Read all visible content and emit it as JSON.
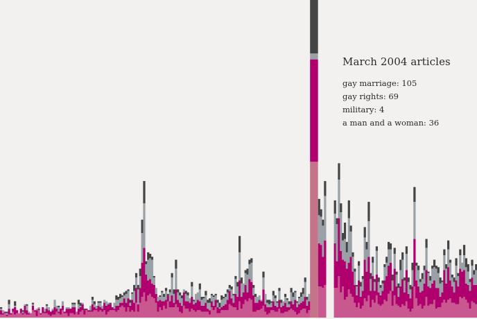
{
  "colors": {
    "background": "#f2f1ef",
    "gay_marriage": "#c8588f",
    "gay_rights": "#b0006e",
    "military": "#9aa1a6",
    "a_man_and_a_woman": "#444444",
    "highlight_base": "#c47389"
  },
  "tooltip": {
    "title": "March 2004 articles",
    "items": [
      {
        "label": "gay marriage",
        "value": 105,
        "text": "gay marriage: 105"
      },
      {
        "label": "gay rights",
        "value": 69,
        "text": "gay rights: 69"
      },
      {
        "label": "military",
        "value": 4,
        "text": "military: 4"
      },
      {
        "label": "a man and a woman",
        "value": 36,
        "text": "a man and a woman: 36"
      }
    ]
  },
  "chart_data": {
    "type": "bar",
    "stacked": true,
    "highlighted_category": "March 2004",
    "series": [
      {
        "name": "gay marriage",
        "key": "gay_marriage"
      },
      {
        "name": "gay rights",
        "key": "gay_rights"
      },
      {
        "name": "military",
        "key": "military"
      },
      {
        "name": "a man and a woman",
        "key": "a_man_and_a_woman"
      }
    ],
    "highlight_values": {
      "gay_marriage": 105,
      "gay_rights": 69,
      "military": 4,
      "a_man_and_a_woman": 36
    },
    "ylim": [
      0,
      214
    ],
    "bars": [
      [
        2,
        3,
        1,
        1
      ],
      [
        2,
        1,
        2,
        0
      ],
      [
        3,
        1,
        0,
        0
      ],
      [
        1,
        1,
        1,
        1
      ],
      [
        2,
        4,
        3,
        3
      ],
      [
        2,
        1,
        0,
        0
      ],
      [
        4,
        2,
        0,
        0
      ],
      [
        2,
        5,
        1,
        3
      ],
      [
        3,
        2,
        0,
        0
      ],
      [
        3,
        0,
        0,
        0
      ],
      [
        3,
        3,
        0,
        0
      ],
      [
        2,
        1,
        1,
        1
      ],
      [
        3,
        5,
        1,
        0
      ],
      [
        2,
        3,
        3,
        1
      ],
      [
        2,
        1,
        1,
        0
      ],
      [
        3,
        0,
        0,
        0
      ],
      [
        5,
        3,
        1,
        1
      ],
      [
        4,
        1,
        0,
        0
      ],
      [
        1,
        4,
        1,
        0
      ],
      [
        5,
        1,
        1,
        0
      ],
      [
        2,
        1,
        0,
        0
      ],
      [
        3,
        4,
        0,
        0
      ],
      [
        3,
        1,
        2,
        0
      ],
      [
        3,
        3,
        2,
        1
      ],
      [
        2,
        3,
        2,
        0
      ],
      [
        1,
        3,
        0,
        0
      ],
      [
        2,
        3,
        1,
        0
      ],
      [
        2,
        5,
        5,
        0
      ],
      [
        4,
        2,
        2,
        0
      ],
      [
        3,
        1,
        3,
        1
      ],
      [
        2,
        4,
        0,
        0
      ],
      [
        5,
        3,
        3,
        0
      ],
      [
        3,
        1,
        0,
        0
      ],
      [
        3,
        3,
        1,
        0
      ],
      [
        1,
        5,
        1,
        0
      ],
      [
        3,
        3,
        0,
        0
      ],
      [
        3,
        4,
        2,
        1
      ],
      [
        2,
        5,
        2,
        1
      ],
      [
        4,
        0,
        0,
        0
      ],
      [
        2,
        4,
        3,
        3
      ],
      [
        4,
        3,
        1,
        2
      ],
      [
        5,
        4,
        1,
        0
      ],
      [
        2,
        3,
        0,
        1
      ],
      [
        5,
        1,
        0,
        0
      ],
      [
        4,
        1,
        0,
        0
      ],
      [
        4,
        1,
        3,
        0
      ],
      [
        4,
        5,
        3,
        2
      ],
      [
        5,
        2,
        2,
        2
      ],
      [
        5,
        1,
        2,
        0
      ],
      [
        4,
        4,
        2,
        1
      ],
      [
        5,
        2,
        3,
        1
      ],
      [
        4,
        2,
        2,
        0
      ],
      [
        5,
        5,
        2,
        0
      ],
      [
        2,
        6,
        3,
        0
      ],
      [
        4,
        5,
        1,
        0
      ],
      [
        5,
        4,
        0,
        1
      ],
      [
        5,
        2,
        0,
        0
      ],
      [
        5,
        1,
        4,
        0
      ],
      [
        4,
        4,
        4,
        3
      ],
      [
        5,
        3,
        4,
        2
      ],
      [
        7,
        3,
        3,
        3
      ],
      [
        8,
        2,
        4,
        1
      ],
      [
        7,
        6,
        2,
        2
      ],
      [
        4,
        6,
        6,
        2
      ],
      [
        7,
        6,
        5,
        1
      ],
      [
        4,
        4,
        2,
        2
      ],
      [
        5,
        7,
        4,
        1
      ],
      [
        4,
        6,
        8,
        4
      ],
      [
        10,
        10,
        7,
        3
      ],
      [
        4,
        5,
        10,
        3
      ],
      [
        10,
        10,
        8,
        5
      ],
      [
        14,
        23,
        20,
        9
      ],
      [
        17,
        30,
        30,
        15
      ],
      [
        11,
        18,
        7,
        2
      ],
      [
        15,
        10,
        14,
        5
      ],
      [
        16,
        10,
        14,
        3
      ],
      [
        14,
        9,
        16,
        2
      ],
      [
        13,
        9,
        5,
        1
      ],
      [
        10,
        6,
        4,
        0
      ],
      [
        4,
        7,
        3,
        0
      ],
      [
        7,
        5,
        2,
        1
      ],
      [
        5,
        6,
        6,
        1
      ],
      [
        8,
        3,
        3,
        2
      ],
      [
        6,
        6,
        6,
        2
      ],
      [
        11,
        4,
        0,
        1
      ],
      [
        7,
        4,
        6,
        2
      ],
      [
        7,
        8,
        12,
        3
      ],
      [
        7,
        3,
        6,
        3
      ],
      [
        9,
        10,
        14,
        6
      ],
      [
        7,
        5,
        5,
        2
      ],
      [
        4,
        6,
        5,
        2
      ],
      [
        3,
        5,
        5,
        2
      ],
      [
        8,
        9,
        2,
        0
      ],
      [
        6,
        5,
        5,
        2
      ],
      [
        6,
        5,
        4,
        2
      ],
      [
        4,
        6,
        3,
        0
      ],
      [
        6,
        8,
        7,
        3
      ],
      [
        5,
        4,
        2,
        1
      ],
      [
        4,
        6,
        6,
        0
      ],
      [
        5,
        7,
        5,
        0
      ],
      [
        5,
        6,
        8,
        4
      ],
      [
        4,
        4,
        4,
        2
      ],
      [
        4,
        4,
        5,
        1
      ],
      [
        4,
        6,
        5,
        3
      ],
      [
        4,
        2,
        4,
        2
      ],
      [
        2,
        3,
        5,
        3
      ],
      [
        7,
        4,
        4,
        1
      ],
      [
        5,
        3,
        6,
        1
      ],
      [
        7,
        5,
        3,
        1
      ],
      [
        3,
        4,
        3,
        2
      ],
      [
        3,
        3,
        1,
        3
      ],
      [
        5,
        2,
        5,
        3
      ],
      [
        5,
        3,
        5,
        1
      ],
      [
        5,
        4,
        5,
        2
      ],
      [
        5,
        7,
        5,
        2
      ],
      [
        9,
        9,
        2,
        2
      ],
      [
        8,
        5,
        6,
        2
      ],
      [
        7,
        3,
        5,
        1
      ],
      [
        7,
        9,
        10,
        2
      ],
      [
        5,
        9,
        7,
        3
      ],
      [
        11,
        14,
        19,
        11
      ],
      [
        6,
        8,
        9,
        4
      ],
      [
        9,
        8,
        6,
        0
      ],
      [
        12,
        10,
        8,
        2
      ],
      [
        11,
        6,
        12,
        4
      ],
      [
        13,
        13,
        10,
        3
      ],
      [
        12,
        12,
        13,
        3
      ],
      [
        4,
        11,
        5,
        2
      ],
      [
        4,
        6,
        4,
        2
      ],
      [
        5,
        5,
        4,
        0
      ],
      [
        5,
        7,
        3,
        0
      ],
      [
        6,
        5,
        1,
        0
      ],
      [
        8,
        11,
        8,
        4
      ],
      [
        4,
        5,
        7,
        0
      ],
      [
        2,
        5,
        3,
        2
      ],
      [
        3,
        4,
        2,
        3
      ],
      [
        5,
        2,
        3,
        1
      ],
      [
        5,
        6,
        4,
        3
      ],
      [
        4,
        4,
        5,
        2
      ],
      [
        4,
        3,
        3,
        1
      ],
      [
        6,
        6,
        6,
        2
      ],
      [
        3,
        4,
        3,
        2
      ],
      [
        3,
        5,
        3,
        0
      ],
      [
        4,
        6,
        4,
        2
      ],
      [
        4,
        3,
        5,
        1
      ],
      [
        5,
        2,
        2,
        2
      ],
      [
        6,
        5,
        6,
        3
      ],
      [
        5,
        4,
        5,
        3
      ],
      [
        4,
        8,
        5,
        1
      ],
      [
        2,
        5,
        3,
        1
      ],
      [
        3,
        6,
        4,
        1
      ],
      [
        5,
        5,
        4,
        3
      ],
      [
        6,
        5,
        5,
        4
      ],
      [
        6,
        8,
        10,
        3
      ],
      [
        3,
        5,
        4,
        2
      ],
      [
        5,
        6,
        5,
        0
      ],
      [
        7,
        5,
        6,
        1
      ],
      [
        11,
        18,
        16,
        3
      ],
      [
        19,
        39,
        29,
        9
      ],
      [
        28,
        26,
        15,
        5
      ],
      [
        21,
        29,
        19,
        11
      ],
      [
        21,
        28,
        19,
        5
      ],
      [
        20,
        21,
        21,
        4
      ],
      [
        22,
        30,
        30,
        10
      ],
      [
        0,
        0,
        0,
        0
      ],
      [
        0,
        0,
        0,
        0
      ],
      [
        0,
        0,
        0,
        0
      ],
      [
        0,
        0,
        0,
        0
      ],
      [
        20,
        30,
        20,
        9
      ],
      [
        20,
        18,
        25,
        4
      ],
      [
        28,
        39,
        26,
        11
      ],
      [
        17,
        28,
        26,
        6
      ],
      [
        21,
        18,
        13,
        5
      ],
      [
        12,
        26,
        15,
        11
      ],
      [
        14,
        19,
        11,
        7
      ],
      [
        19,
        18,
        30,
        12
      ],
      [
        16,
        25,
        17,
        4
      ],
      [
        14,
        17,
        10,
        3
      ],
      [
        10,
        12,
        9,
        2
      ],
      [
        7,
        8,
        6,
        1
      ],
      [
        10,
        15,
        10,
        3
      ],
      [
        6,
        8,
        7,
        3
      ],
      [
        8,
        10,
        8,
        2
      ],
      [
        13,
        26,
        15,
        7
      ],
      [
        11,
        20,
        15,
        5
      ],
      [
        15,
        26,
        24,
        13
      ],
      [
        7,
        11,
        8,
        4
      ],
      [
        12,
        16,
        9,
        4
      ],
      [
        10,
        8,
        6,
        2
      ],
      [
        15,
        14,
        16,
        3
      ],
      [
        9,
        8,
        7,
        3
      ],
      [
        8,
        7,
        5,
        2
      ],
      [
        9,
        9,
        5,
        2
      ],
      [
        12,
        13,
        9,
        2
      ],
      [
        11,
        17,
        9,
        4
      ],
      [
        16,
        19,
        11,
        5
      ],
      [
        18,
        19,
        9,
        4
      ],
      [
        8,
        10,
        7,
        4
      ],
      [
        15,
        18,
        10,
        4
      ],
      [
        9,
        12,
        8,
        2
      ],
      [
        8,
        6,
        6,
        3
      ],
      [
        7,
        14,
        11,
        7
      ],
      [
        9,
        17,
        13,
        5
      ],
      [
        8,
        9,
        8,
        2
      ],
      [
        11,
        21,
        11,
        5
      ],
      [
        6,
        10,
        8,
        3
      ],
      [
        4,
        9,
        6,
        3
      ],
      [
        6,
        15,
        11,
        5
      ],
      [
        21,
        32,
        25,
        10
      ],
      [
        13,
        12,
        10,
        2
      ],
      [
        8,
        13,
        11,
        3
      ],
      [
        9,
        8,
        7,
        2
      ],
      [
        6,
        12,
        8,
        4
      ],
      [
        8,
        15,
        9,
        3
      ],
      [
        14,
        18,
        15,
        6
      ],
      [
        8,
        13,
        9,
        1
      ],
      [
        9,
        11,
        5,
        3
      ],
      [
        9,
        14,
        10,
        2
      ],
      [
        12,
        13,
        9,
        5
      ],
      [
        6,
        14,
        13,
        2
      ],
      [
        7,
        13,
        10,
        4
      ],
      [
        7,
        7,
        9,
        4
      ],
      [
        10,
        7,
        7,
        1
      ],
      [
        12,
        20,
        10,
        4
      ],
      [
        10,
        13,
        10,
        3
      ],
      [
        12,
        22,
        12,
        6
      ],
      [
        13,
        12,
        12,
        2
      ],
      [
        10,
        11,
        6,
        2
      ],
      [
        10,
        7,
        7,
        3
      ],
      [
        9,
        16,
        10,
        5
      ],
      [
        9,
        12,
        7,
        2
      ],
      [
        14,
        19,
        9,
        4
      ],
      [
        13,
        18,
        6,
        0
      ],
      [
        14,
        18,
        10,
        7
      ],
      [
        12,
        11,
        11,
        6
      ],
      [
        10,
        12,
        9,
        5
      ],
      [
        6,
        12,
        6,
        2
      ],
      [
        11,
        16,
        8,
        4
      ],
      [
        10,
        12,
        7,
        3
      ],
      [
        9,
        13,
        10,
        4
      ]
    ]
  }
}
